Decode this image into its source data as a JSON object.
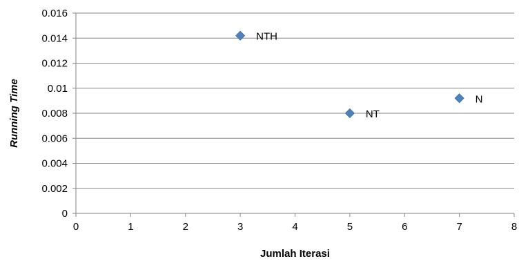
{
  "chart_data": {
    "type": "scatter",
    "title": "",
    "xlabel": "Jumlah Iterasi",
    "ylabel": "Running Time",
    "xlim": [
      0,
      8
    ],
    "ylim": [
      0,
      0.016
    ],
    "x_ticks": [
      "0",
      "1",
      "2",
      "3",
      "4",
      "5",
      "6",
      "7",
      "8"
    ],
    "y_ticks": [
      "0",
      "0.002",
      "0.004",
      "0.006",
      "0.008",
      "0.01",
      "0.012",
      "0.014",
      "0.016"
    ],
    "grid": "horizontal",
    "legend": "none",
    "marker": "diamond",
    "marker_color": "#4f81bd",
    "points": [
      {
        "x": 3,
        "y": 0.0142,
        "label": "NTH"
      },
      {
        "x": 5,
        "y": 0.008,
        "label": "NT"
      },
      {
        "x": 7,
        "y": 0.0092,
        "label": "N"
      }
    ]
  }
}
